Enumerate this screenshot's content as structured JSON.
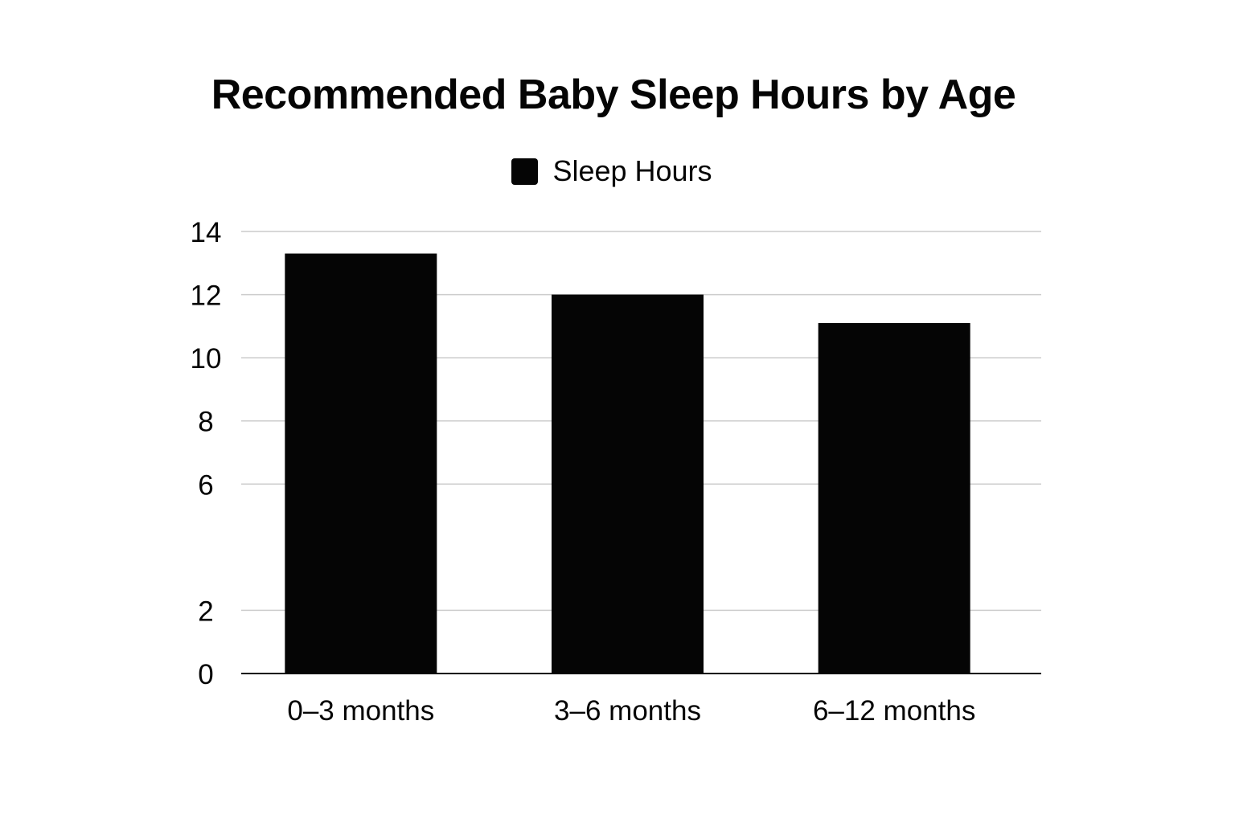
{
  "chart_data": {
    "type": "bar",
    "title": "Recommended Baby Sleep Hours by Age",
    "xlabel": "",
    "ylabel": "",
    "categories": [
      "0–3 months",
      "3–6 months",
      "6–12 months"
    ],
    "series": [
      {
        "name": "Sleep Hours",
        "values": [
          13.3,
          12.0,
          11.1
        ],
        "color": "#050505"
      }
    ],
    "y_ticks": [
      "0",
      "2",
      "6",
      "8",
      "10",
      "12",
      "14"
    ],
    "y_tick_values": [
      0,
      2,
      6,
      8,
      10,
      12,
      14
    ],
    "ylim": [
      0,
      14
    ],
    "grid": true,
    "legend_position": "top-center",
    "colors": {
      "bar": "#050505",
      "grid": "#cccccc",
      "axis": "#050505"
    }
  }
}
